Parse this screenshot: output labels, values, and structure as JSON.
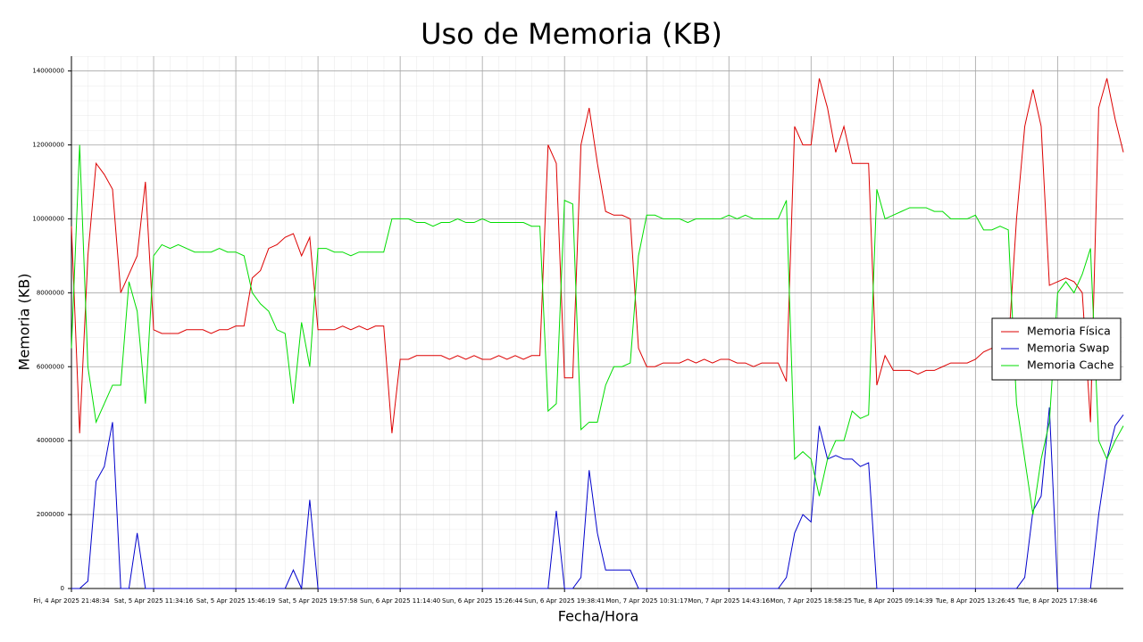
{
  "chart_data": {
    "type": "line",
    "title": "Uso de Memoria (KB)",
    "xlabel": "Fecha/Hora",
    "ylabel": "Memoria (KB)",
    "x": [
      0,
      1,
      2,
      3,
      4,
      5,
      6,
      7,
      8,
      9,
      10,
      11,
      12,
      13,
      14,
      15,
      16,
      17,
      18,
      19,
      20,
      21,
      22,
      23,
      24,
      25,
      26,
      27,
      28,
      29,
      30,
      31,
      32,
      33,
      34,
      35,
      36,
      37,
      38,
      39,
      40,
      41,
      42,
      43,
      44,
      45,
      46,
      47,
      48,
      49,
      50,
      51,
      52,
      53,
      54,
      55,
      56,
      57,
      58,
      59,
      60,
      61,
      62,
      63,
      64,
      65,
      66,
      67,
      68,
      69,
      70,
      71,
      72,
      73,
      74,
      75,
      76,
      77,
      78,
      79,
      80,
      81,
      82,
      83,
      84,
      85,
      86,
      87,
      88,
      89,
      90,
      91,
      92,
      93,
      94,
      95,
      96,
      97,
      98,
      99,
      100,
      101,
      102,
      103,
      104,
      105,
      106,
      107,
      108,
      109,
      110,
      111,
      112,
      113,
      114,
      115,
      116,
      117,
      118,
      119,
      120,
      121,
      122,
      123,
      124,
      125,
      126,
      127,
      128
    ],
    "series": [
      {
        "name": "Memoria Física",
        "color": "#dd0000",
        "values": [
          9800000,
          4200000,
          9000000,
          11500000,
          11200000,
          10800000,
          8000000,
          8500000,
          9000000,
          11000000,
          7000000,
          6900000,
          6900000,
          6900000,
          7000000,
          7000000,
          7000000,
          6900000,
          7000000,
          7000000,
          7100000,
          7100000,
          8400000,
          8600000,
          9200000,
          9300000,
          9500000,
          9600000,
          9000000,
          9500000,
          7000000,
          7000000,
          7000000,
          7100000,
          7000000,
          7100000,
          7000000,
          7100000,
          7100000,
          4200000,
          6200000,
          6200000,
          6300000,
          6300000,
          6300000,
          6300000,
          6200000,
          6300000,
          6200000,
          6300000,
          6200000,
          6200000,
          6300000,
          6200000,
          6300000,
          6200000,
          6300000,
          6300000,
          12000000,
          11500000,
          5700000,
          5700000,
          12000000,
          13000000,
          11500000,
          10200000,
          10100000,
          10100000,
          10000000,
          6500000,
          6000000,
          6000000,
          6100000,
          6100000,
          6100000,
          6200000,
          6100000,
          6200000,
          6100000,
          6200000,
          6200000,
          6100000,
          6100000,
          6000000,
          6100000,
          6100000,
          6100000,
          5600000,
          12500000,
          12000000,
          12000000,
          13800000,
          13000000,
          11800000,
          12500000,
          11500000,
          11500000,
          11500000,
          5500000,
          6300000,
          5900000,
          5900000,
          5900000,
          5800000,
          5900000,
          5900000,
          6000000,
          6100000,
          6100000,
          6100000,
          6200000,
          6400000,
          6500000,
          6400000,
          6500000,
          10000000,
          12500000,
          13500000,
          12500000,
          8200000,
          8300000,
          8400000,
          8300000,
          8000000,
          4500000,
          13000000,
          13800000,
          12700000,
          11800000
        ]
      },
      {
        "name": "Memoria Swap",
        "color": "#0000cc",
        "values": [
          0,
          0,
          200000,
          2900000,
          3300000,
          4500000,
          0,
          0,
          1500000,
          0,
          0,
          0,
          0,
          0,
          0,
          0,
          0,
          0,
          0,
          0,
          0,
          0,
          0,
          0,
          0,
          0,
          0,
          500000,
          0,
          2400000,
          0,
          0,
          0,
          0,
          0,
          0,
          0,
          0,
          0,
          0,
          0,
          0,
          0,
          0,
          0,
          0,
          0,
          0,
          0,
          0,
          0,
          0,
          0,
          0,
          0,
          0,
          0,
          0,
          0,
          2100000,
          0,
          0,
          300000,
          3200000,
          1500000,
          500000,
          500000,
          500000,
          500000,
          0,
          0,
          0,
          0,
          0,
          0,
          0,
          0,
          0,
          0,
          0,
          0,
          0,
          0,
          0,
          0,
          0,
          0,
          300000,
          1500000,
          2000000,
          1800000,
          4400000,
          3500000,
          3600000,
          3500000,
          3500000,
          3300000,
          3400000,
          0,
          0,
          0,
          0,
          0,
          0,
          0,
          0,
          0,
          0,
          0,
          0,
          0,
          0,
          0,
          0,
          0,
          0,
          300000,
          2100000,
          2500000,
          4900000,
          0,
          0,
          0,
          0,
          0,
          2000000,
          3500000,
          4400000,
          4700000
        ]
      },
      {
        "name": "Memoria Cache",
        "color": "#00dd00",
        "values": [
          6500000,
          12000000,
          6000000,
          4500000,
          5000000,
          5500000,
          5500000,
          8300000,
          7500000,
          5000000,
          9000000,
          9300000,
          9200000,
          9300000,
          9200000,
          9100000,
          9100000,
          9100000,
          9200000,
          9100000,
          9100000,
          9000000,
          8000000,
          7700000,
          7500000,
          7000000,
          6900000,
          5000000,
          7200000,
          6000000,
          9200000,
          9200000,
          9100000,
          9100000,
          9000000,
          9100000,
          9100000,
          9100000,
          9100000,
          10000000,
          10000000,
          10000000,
          9900000,
          9900000,
          9800000,
          9900000,
          9900000,
          10000000,
          9900000,
          9900000,
          10000000,
          9900000,
          9900000,
          9900000,
          9900000,
          9900000,
          9800000,
          9800000,
          4800000,
          5000000,
          10500000,
          10400000,
          4300000,
          4500000,
          4500000,
          5500000,
          6000000,
          6000000,
          6100000,
          9000000,
          10100000,
          10100000,
          10000000,
          10000000,
          10000000,
          9900000,
          10000000,
          10000000,
          10000000,
          10000000,
          10100000,
          10000000,
          10100000,
          10000000,
          10000000,
          10000000,
          10000000,
          10500000,
          3500000,
          3700000,
          3500000,
          2500000,
          3500000,
          4000000,
          4000000,
          4800000,
          4600000,
          4700000,
          10800000,
          10000000,
          10100000,
          10200000,
          10300000,
          10300000,
          10300000,
          10200000,
          10200000,
          10000000,
          10000000,
          10000000,
          10100000,
          9700000,
          9700000,
          9800000,
          9700000,
          5000000,
          3500000,
          2000000,
          3500000,
          4500000,
          8000000,
          8300000,
          8000000,
          8500000,
          9200000,
          4000000,
          3500000,
          4000000,
          4400000
        ]
      }
    ],
    "xlim": [
      0,
      128
    ],
    "xticks": [
      {
        "value": 0,
        "label": "Fri, 4 Apr 2025 21:48:34"
      },
      {
        "value": 10,
        "label": "Sat, 5 Apr 2025 11:34:16"
      },
      {
        "value": 20,
        "label": "Sat, 5 Apr 2025 15:46:19"
      },
      {
        "value": 30,
        "label": "Sat, 5 Apr 2025 19:57:58"
      },
      {
        "value": 40,
        "label": "Sun, 6 Apr 2025 11:14:40"
      },
      {
        "value": 50,
        "label": "Sun, 6 Apr 2025 15:26:44"
      },
      {
        "value": 60,
        "label": "Sun, 6 Apr 2025 19:38:41"
      },
      {
        "value": 70,
        "label": "Mon, 7 Apr 2025 10:31:17"
      },
      {
        "value": 80,
        "label": "Mon, 7 Apr 2025 14:43:16"
      },
      {
        "value": 90,
        "label": "Mon, 7 Apr 2025 18:58:25"
      },
      {
        "value": 100,
        "label": "Tue, 8 Apr 2025 09:14:39"
      },
      {
        "value": 110,
        "label": "Tue, 8 Apr 2025 13:26:45"
      },
      {
        "value": 120,
        "label": "Tue, 8 Apr 2025 17:38:46"
      }
    ],
    "ylim": [
      0,
      14400000
    ],
    "yticks": [
      0,
      2000000,
      4000000,
      6000000,
      8000000,
      10000000,
      12000000,
      14000000
    ],
    "grid": true,
    "minor_grid": true,
    "legend": "center right"
  }
}
